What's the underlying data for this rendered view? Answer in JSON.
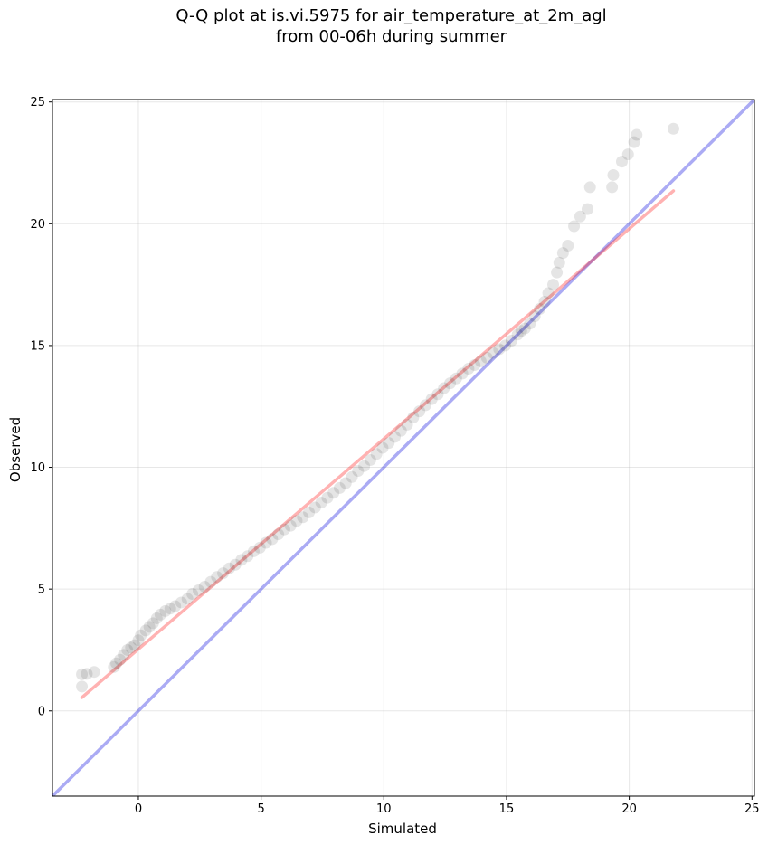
{
  "chart_data": {
    "type": "scatter",
    "title_line1": "Q-Q plot at is.vi.5975 for air_temperature_at_2m_agl",
    "title_line2": "from 00-06h during summer",
    "xlabel": "Simulated",
    "ylabel": "Observed",
    "xlim": [
      -3.5,
      25.1
    ],
    "ylim": [
      -3.5,
      25.1
    ],
    "xticks": [
      0,
      5,
      10,
      15,
      20,
      25
    ],
    "yticks": [
      0,
      5,
      10,
      15,
      20,
      25
    ],
    "grid": true,
    "colors": {
      "points": "#000000",
      "fit_line": "#ff0000",
      "identity_line": "#0000dd"
    },
    "fit_line": {
      "x": [
        -2.3,
        21.8
      ],
      "y": [
        0.55,
        21.35
      ]
    },
    "identity_line": {
      "x": [
        -3.5,
        25.1
      ],
      "y": [
        -3.5,
        25.1
      ]
    },
    "points": [
      [
        -2.3,
        1.0
      ],
      [
        -2.3,
        1.5
      ],
      [
        -2.1,
        1.52
      ],
      [
        -1.8,
        1.6
      ],
      [
        -1.0,
        1.8
      ],
      [
        -0.9,
        1.95
      ],
      [
        -0.75,
        2.1
      ],
      [
        -0.6,
        2.3
      ],
      [
        -0.45,
        2.5
      ],
      [
        -0.3,
        2.6
      ],
      [
        -0.15,
        2.7
      ],
      [
        0.0,
        2.9
      ],
      [
        0.1,
        3.1
      ],
      [
        0.3,
        3.3
      ],
      [
        0.45,
        3.45
      ],
      [
        0.6,
        3.6
      ],
      [
        0.75,
        3.8
      ],
      [
        0.9,
        3.95
      ],
      [
        1.1,
        4.1
      ],
      [
        1.3,
        4.2
      ],
      [
        1.5,
        4.3
      ],
      [
        1.75,
        4.45
      ],
      [
        2.0,
        4.6
      ],
      [
        2.2,
        4.8
      ],
      [
        2.45,
        4.95
      ],
      [
        2.7,
        5.1
      ],
      [
        2.95,
        5.3
      ],
      [
        3.2,
        5.5
      ],
      [
        3.45,
        5.65
      ],
      [
        3.7,
        5.85
      ],
      [
        3.95,
        6.0
      ],
      [
        4.2,
        6.2
      ],
      [
        4.45,
        6.35
      ],
      [
        4.7,
        6.55
      ],
      [
        4.95,
        6.7
      ],
      [
        5.2,
        6.9
      ],
      [
        5.45,
        7.05
      ],
      [
        5.7,
        7.25
      ],
      [
        5.95,
        7.45
      ],
      [
        6.2,
        7.6
      ],
      [
        6.45,
        7.8
      ],
      [
        6.7,
        7.95
      ],
      [
        6.95,
        8.15
      ],
      [
        7.2,
        8.35
      ],
      [
        7.45,
        8.55
      ],
      [
        7.7,
        8.75
      ],
      [
        7.95,
        8.95
      ],
      [
        8.2,
        9.15
      ],
      [
        8.45,
        9.35
      ],
      [
        8.7,
        9.6
      ],
      [
        8.95,
        9.85
      ],
      [
        9.2,
        10.05
      ],
      [
        9.45,
        10.3
      ],
      [
        9.7,
        10.55
      ],
      [
        9.95,
        10.8
      ],
      [
        10.2,
        11.0
      ],
      [
        10.45,
        11.25
      ],
      [
        10.7,
        11.5
      ],
      [
        10.95,
        11.75
      ],
      [
        11.2,
        12.05
      ],
      [
        11.45,
        12.3
      ],
      [
        11.7,
        12.55
      ],
      [
        11.95,
        12.8
      ],
      [
        12.2,
        13.0
      ],
      [
        12.45,
        13.25
      ],
      [
        12.7,
        13.45
      ],
      [
        12.95,
        13.65
      ],
      [
        13.2,
        13.85
      ],
      [
        13.45,
        14.05
      ],
      [
        13.7,
        14.2
      ],
      [
        13.95,
        14.35
      ],
      [
        14.2,
        14.5
      ],
      [
        14.45,
        14.7
      ],
      [
        14.7,
        14.85
      ],
      [
        14.95,
        15.0
      ],
      [
        15.2,
        15.2
      ],
      [
        15.45,
        15.45
      ],
      [
        15.6,
        15.6
      ],
      [
        15.75,
        15.7
      ],
      [
        15.95,
        15.9
      ],
      [
        16.15,
        16.2
      ],
      [
        16.35,
        16.5
      ],
      [
        16.55,
        16.8
      ],
      [
        16.7,
        17.15
      ],
      [
        16.9,
        17.5
      ],
      [
        17.05,
        18.0
      ],
      [
        17.15,
        18.4
      ],
      [
        17.3,
        18.8
      ],
      [
        17.5,
        19.1
      ],
      [
        17.75,
        19.9
      ],
      [
        18.0,
        20.3
      ],
      [
        18.3,
        20.6
      ],
      [
        18.4,
        21.5
      ],
      [
        19.3,
        21.5
      ],
      [
        19.35,
        22.0
      ],
      [
        19.7,
        22.55
      ],
      [
        19.95,
        22.85
      ],
      [
        20.2,
        23.35
      ],
      [
        20.3,
        23.65
      ],
      [
        21.8,
        23.9
      ]
    ]
  }
}
